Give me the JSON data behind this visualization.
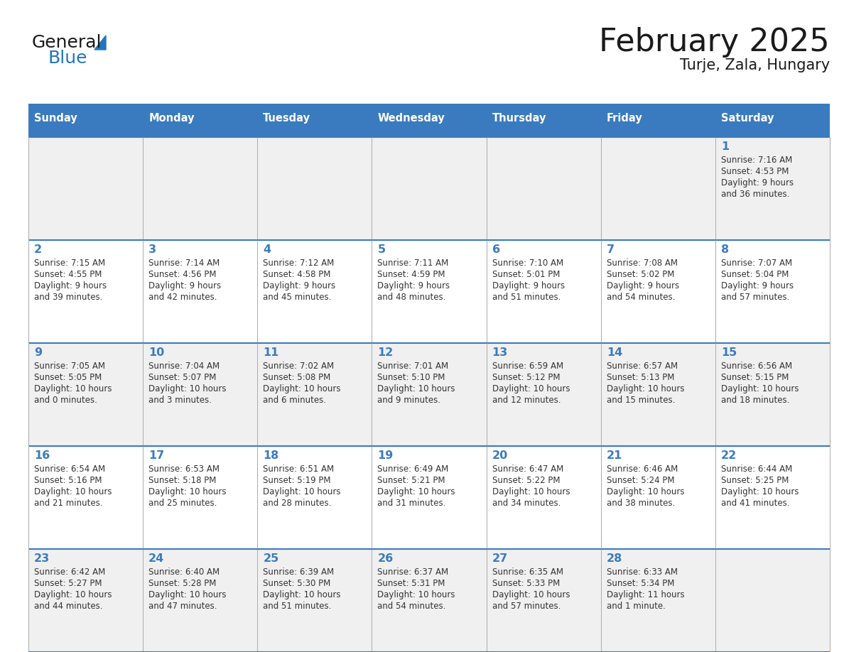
{
  "title": "February 2025",
  "subtitle": "Turje, Zala, Hungary",
  "days_of_week": [
    "Sunday",
    "Monday",
    "Tuesday",
    "Wednesday",
    "Thursday",
    "Friday",
    "Saturday"
  ],
  "header_bg": "#3a7bbf",
  "header_text": "#ffffff",
  "row_bg_odd": "#f0f0f0",
  "row_bg_even": "#ffffff",
  "cell_border_color": "#3a7bbf",
  "col_border_color": "#aaaaaa",
  "title_color": "#1a1a1a",
  "day_number_color": "#3a7bbf",
  "text_color": "#333333",
  "logo_black": "#1a1a1a",
  "logo_blue": "#2175bc",
  "calendar_data": [
    [
      null,
      null,
      null,
      null,
      null,
      null,
      {
        "day": "1",
        "sunrise": "7:16 AM",
        "sunset": "4:53 PM",
        "dl1": "9 hours",
        "dl2": "and 36 minutes."
      }
    ],
    [
      {
        "day": "2",
        "sunrise": "7:15 AM",
        "sunset": "4:55 PM",
        "dl1": "9 hours",
        "dl2": "and 39 minutes."
      },
      {
        "day": "3",
        "sunrise": "7:14 AM",
        "sunset": "4:56 PM",
        "dl1": "9 hours",
        "dl2": "and 42 minutes."
      },
      {
        "day": "4",
        "sunrise": "7:12 AM",
        "sunset": "4:58 PM",
        "dl1": "9 hours",
        "dl2": "and 45 minutes."
      },
      {
        "day": "5",
        "sunrise": "7:11 AM",
        "sunset": "4:59 PM",
        "dl1": "9 hours",
        "dl2": "and 48 minutes."
      },
      {
        "day": "6",
        "sunrise": "7:10 AM",
        "sunset": "5:01 PM",
        "dl1": "9 hours",
        "dl2": "and 51 minutes."
      },
      {
        "day": "7",
        "sunrise": "7:08 AM",
        "sunset": "5:02 PM",
        "dl1": "9 hours",
        "dl2": "and 54 minutes."
      },
      {
        "day": "8",
        "sunrise": "7:07 AM",
        "sunset": "5:04 PM",
        "dl1": "9 hours",
        "dl2": "and 57 minutes."
      }
    ],
    [
      {
        "day": "9",
        "sunrise": "7:05 AM",
        "sunset": "5:05 PM",
        "dl1": "10 hours",
        "dl2": "and 0 minutes."
      },
      {
        "day": "10",
        "sunrise": "7:04 AM",
        "sunset": "5:07 PM",
        "dl1": "10 hours",
        "dl2": "and 3 minutes."
      },
      {
        "day": "11",
        "sunrise": "7:02 AM",
        "sunset": "5:08 PM",
        "dl1": "10 hours",
        "dl2": "and 6 minutes."
      },
      {
        "day": "12",
        "sunrise": "7:01 AM",
        "sunset": "5:10 PM",
        "dl1": "10 hours",
        "dl2": "and 9 minutes."
      },
      {
        "day": "13",
        "sunrise": "6:59 AM",
        "sunset": "5:12 PM",
        "dl1": "10 hours",
        "dl2": "and 12 minutes."
      },
      {
        "day": "14",
        "sunrise": "6:57 AM",
        "sunset": "5:13 PM",
        "dl1": "10 hours",
        "dl2": "and 15 minutes."
      },
      {
        "day": "15",
        "sunrise": "6:56 AM",
        "sunset": "5:15 PM",
        "dl1": "10 hours",
        "dl2": "and 18 minutes."
      }
    ],
    [
      {
        "day": "16",
        "sunrise": "6:54 AM",
        "sunset": "5:16 PM",
        "dl1": "10 hours",
        "dl2": "and 21 minutes."
      },
      {
        "day": "17",
        "sunrise": "6:53 AM",
        "sunset": "5:18 PM",
        "dl1": "10 hours",
        "dl2": "and 25 minutes."
      },
      {
        "day": "18",
        "sunrise": "6:51 AM",
        "sunset": "5:19 PM",
        "dl1": "10 hours",
        "dl2": "and 28 minutes."
      },
      {
        "day": "19",
        "sunrise": "6:49 AM",
        "sunset": "5:21 PM",
        "dl1": "10 hours",
        "dl2": "and 31 minutes."
      },
      {
        "day": "20",
        "sunrise": "6:47 AM",
        "sunset": "5:22 PM",
        "dl1": "10 hours",
        "dl2": "and 34 minutes."
      },
      {
        "day": "21",
        "sunrise": "6:46 AM",
        "sunset": "5:24 PM",
        "dl1": "10 hours",
        "dl2": "and 38 minutes."
      },
      {
        "day": "22",
        "sunrise": "6:44 AM",
        "sunset": "5:25 PM",
        "dl1": "10 hours",
        "dl2": "and 41 minutes."
      }
    ],
    [
      {
        "day": "23",
        "sunrise": "6:42 AM",
        "sunset": "5:27 PM",
        "dl1": "10 hours",
        "dl2": "and 44 minutes."
      },
      {
        "day": "24",
        "sunrise": "6:40 AM",
        "sunset": "5:28 PM",
        "dl1": "10 hours",
        "dl2": "and 47 minutes."
      },
      {
        "day": "25",
        "sunrise": "6:39 AM",
        "sunset": "5:30 PM",
        "dl1": "10 hours",
        "dl2": "and 51 minutes."
      },
      {
        "day": "26",
        "sunrise": "6:37 AM",
        "sunset": "5:31 PM",
        "dl1": "10 hours",
        "dl2": "and 54 minutes."
      },
      {
        "day": "27",
        "sunrise": "6:35 AM",
        "sunset": "5:33 PM",
        "dl1": "10 hours",
        "dl2": "and 57 minutes."
      },
      {
        "day": "28",
        "sunrise": "6:33 AM",
        "sunset": "5:34 PM",
        "dl1": "11 hours",
        "dl2": "and 1 minute."
      },
      null
    ]
  ]
}
